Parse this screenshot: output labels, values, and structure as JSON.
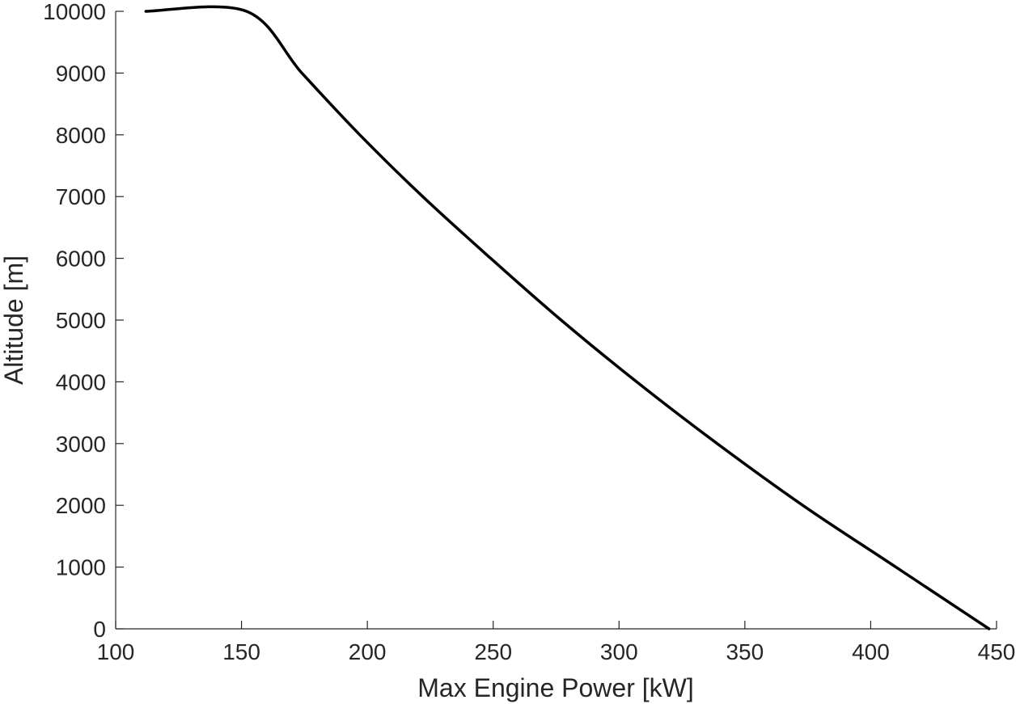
{
  "chart_data": {
    "type": "line",
    "xlabel": "Max Engine Power [kW]",
    "ylabel": "Altitude [m]",
    "xlim": [
      100,
      450
    ],
    "ylim": [
      0,
      10000
    ],
    "x_ticks": [
      "100",
      "150",
      "200",
      "250",
      "300",
      "350",
      "400",
      "450"
    ],
    "y_ticks": [
      "0",
      "1000",
      "2000",
      "3000",
      "4000",
      "5000",
      "6000",
      "7000",
      "8000",
      "9000",
      "10000"
    ],
    "grid": false,
    "legend": "none",
    "series": [
      {
        "color": "#000000",
        "points": [
          [
            447,
            0
          ],
          [
            410,
            1000
          ],
          [
            373,
            2000
          ],
          [
            339,
            3000
          ],
          [
            307,
            4000
          ],
          [
            277,
            5000
          ],
          [
            249,
            6000
          ],
          [
            222,
            7000
          ],
          [
            197,
            8000
          ],
          [
            174,
            9000
          ],
          [
            152,
            10000
          ],
          [
            112,
            10000
          ]
        ]
      }
    ]
  }
}
